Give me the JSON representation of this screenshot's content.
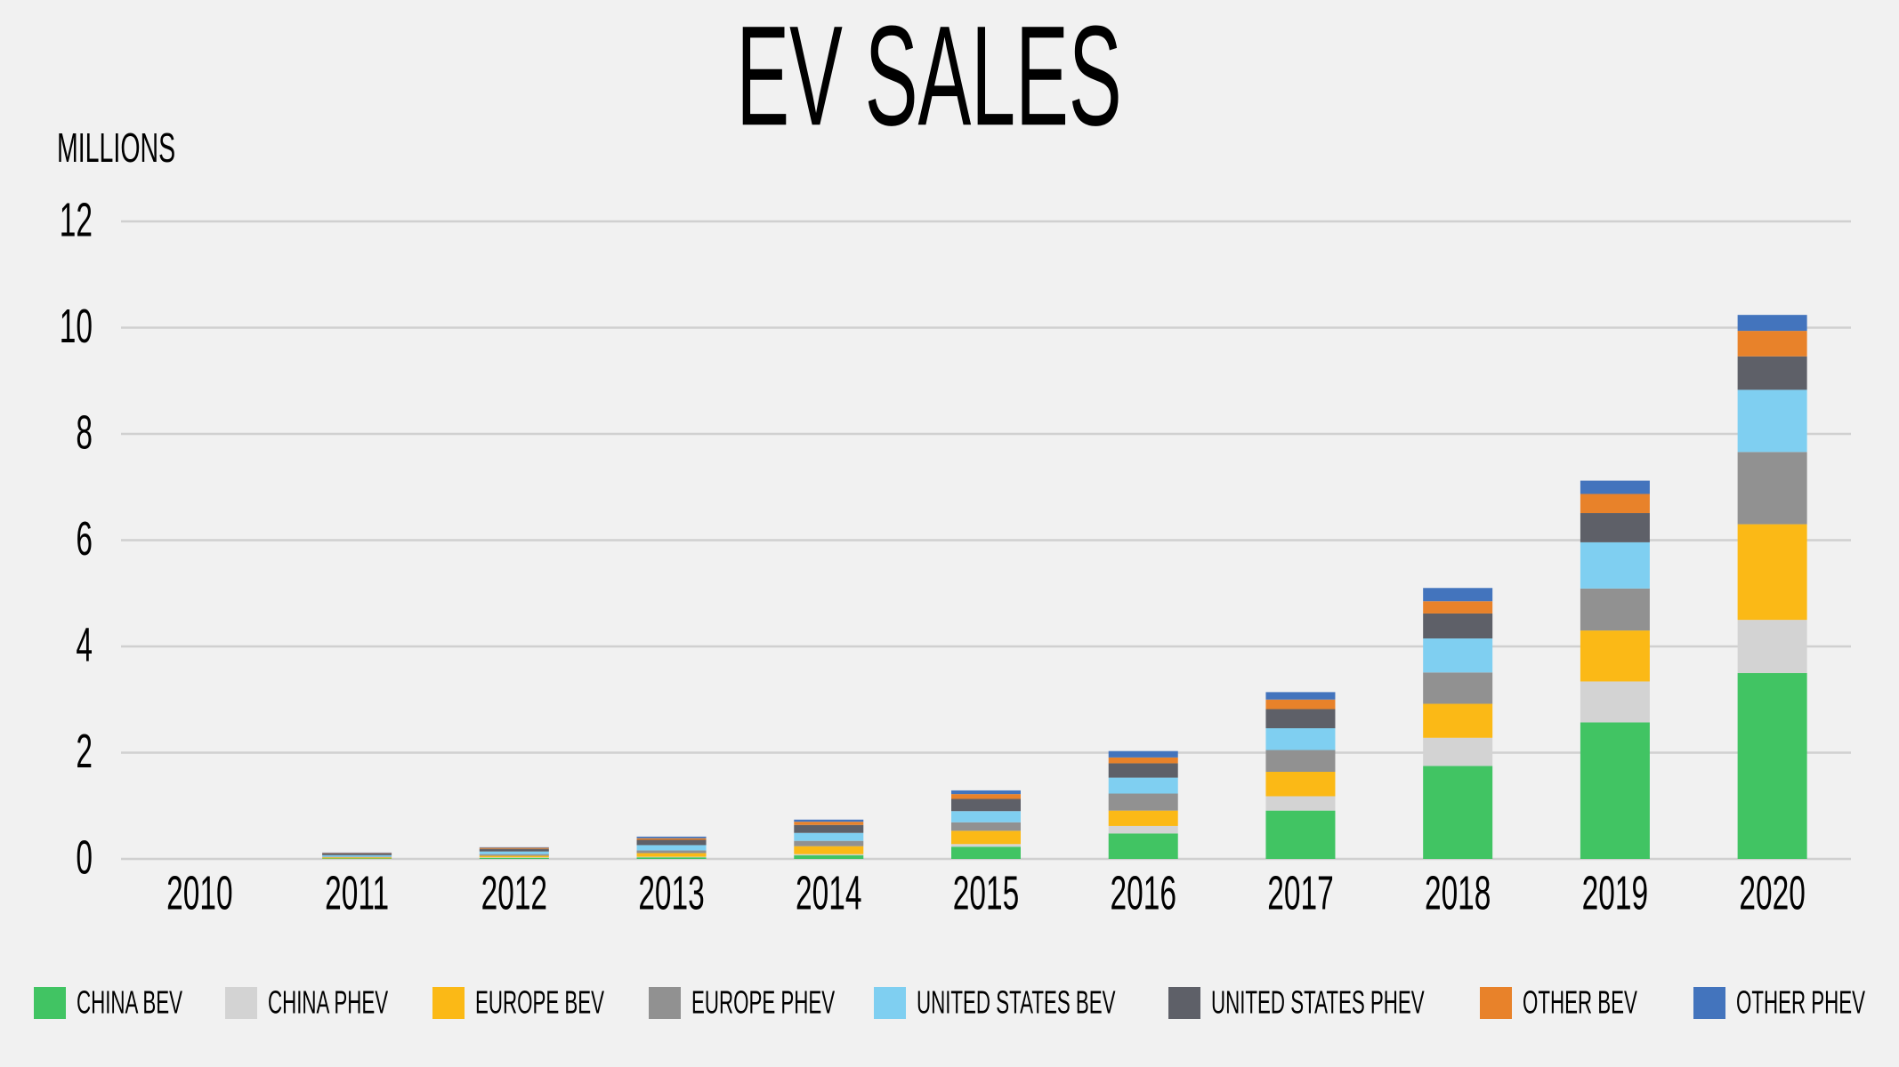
{
  "chart_data": {
    "type": "stacked_bar",
    "title": "EV SALES",
    "y_label": "MILLIONS",
    "categories": [
      "2010",
      "2011",
      "2012",
      "2013",
      "2014",
      "2015",
      "2016",
      "2017",
      "2018",
      "2019",
      "2020"
    ],
    "series": [
      {
        "name": "CHINA BEV",
        "color": "#41c463",
        "values": [
          0,
          0.01,
          0.02,
          0.03,
          0.07,
          0.23,
          0.48,
          0.91,
          1.75,
          2.57,
          3.5
        ]
      },
      {
        "name": "CHINA PHEV",
        "color": "#d3d3d3",
        "values": [
          0,
          0,
          0.01,
          0.01,
          0.02,
          0.05,
          0.14,
          0.27,
          0.53,
          0.77,
          1.0
        ]
      },
      {
        "name": "EUROPE BEV",
        "color": "#fbb916",
        "values": [
          0,
          0.02,
          0.03,
          0.07,
          0.15,
          0.25,
          0.29,
          0.46,
          0.64,
          0.96,
          1.8
        ]
      },
      {
        "name": "EUROPE PHEV",
        "color": "#919191",
        "values": [
          0,
          0.01,
          0.03,
          0.05,
          0.1,
          0.16,
          0.32,
          0.41,
          0.59,
          0.79,
          1.36
        ]
      },
      {
        "name": "UNITED STATES BEV",
        "color": "#7fcff1",
        "values": [
          0,
          0.03,
          0.05,
          0.1,
          0.15,
          0.21,
          0.3,
          0.41,
          0.64,
          0.87,
          1.17
        ]
      },
      {
        "name": "UNITED STATES PHEV",
        "color": "#5e6068",
        "values": [
          0,
          0.03,
          0.05,
          0.1,
          0.15,
          0.23,
          0.27,
          0.36,
          0.47,
          0.55,
          0.63
        ]
      },
      {
        "name": "OTHER BEV",
        "color": "#e8822a",
        "values": [
          0,
          0.01,
          0.02,
          0.03,
          0.06,
          0.09,
          0.11,
          0.18,
          0.23,
          0.36,
          0.48
        ]
      },
      {
        "name": "OTHER PHEV",
        "color": "#4374bd",
        "values": [
          0,
          0.01,
          0.01,
          0.03,
          0.04,
          0.07,
          0.12,
          0.14,
          0.25,
          0.25,
          0.3
        ]
      }
    ],
    "ylim": [
      0,
      12
    ],
    "yticks": [
      0,
      2,
      4,
      6,
      8,
      10,
      12
    ],
    "grid": true,
    "legend": "bottom"
  }
}
